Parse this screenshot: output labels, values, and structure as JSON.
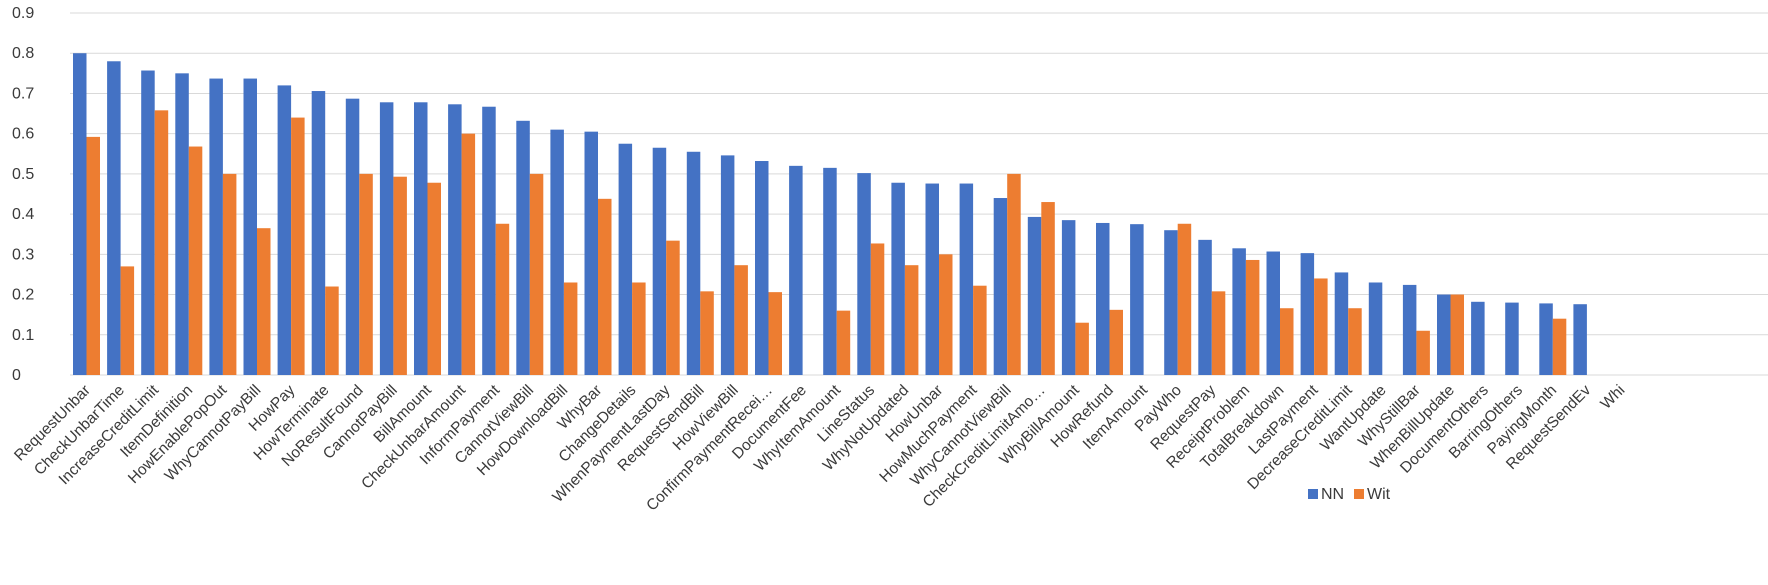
{
  "chart_data": {
    "type": "bar",
    "title": "",
    "xlabel": "",
    "ylabel": "",
    "ylim": [
      0,
      0.9
    ],
    "yticks": [
      "0",
      "0.1",
      "0.2",
      "0.3",
      "0.4",
      "0.5",
      "0.6",
      "0.7",
      "0.8",
      "0.9"
    ],
    "grid": true,
    "legend_position": "bottom-right",
    "categories": [
      "RequestUnbar",
      "CheckUnbarTime",
      "IncreaseCreditLimit",
      "ItemDefinition",
      "HowEnablePopOut",
      "WhyCannotPayBill",
      "HowPay",
      "HowTerminate",
      "NoResultFound",
      "CannotPayBill",
      "BillAmount",
      "CheckUnbarAmount",
      "InformPayment",
      "CannotViewBill",
      "HowDownloadBill",
      "WhyBar",
      "ChangeDetails",
      "WhenPaymentLastDay",
      "RequestSendBill",
      "HowViewBill",
      "ConfirmPaymentRecei…",
      "DocumentFee",
      "WhyItemAmount",
      "LineStatus",
      "WhyNotUpdated",
      "HowUnbar",
      "HowMuchPayment",
      "WhyCannotViewBill",
      "CheckCreditLimitAmo…",
      "WhyBillAmount",
      "HowRefund",
      "ItemAmount",
      "PayWho",
      "RequestPay",
      "ReceiptProblem",
      "TotalBreakdown",
      "LastPayment",
      "DecreaseCreditLimit",
      "WantUpdate",
      "WhyStillBar",
      "WhenBillUpdate",
      "DocumentOthers",
      "BarringOthers",
      "PayingMonth",
      "RequestSendEv",
      "Whi"
    ],
    "series": [
      {
        "name": "NN",
        "color": "#4472C4",
        "values": [
          0.8,
          0.78,
          0.757,
          0.75,
          0.737,
          0.737,
          0.72,
          0.706,
          0.687,
          0.678,
          0.678,
          0.673,
          0.667,
          0.632,
          0.61,
          0.605,
          0.575,
          0.565,
          0.555,
          0.546,
          0.532,
          0.52,
          0.515,
          0.502,
          0.478,
          0.476,
          0.476,
          0.44,
          0.393,
          0.385,
          0.378,
          0.375,
          0.36,
          0.336,
          0.315,
          0.307,
          0.303,
          0.255,
          0.23,
          0.224,
          0.2,
          0.182,
          0.18,
          0.178,
          0.176,
          0.0
        ]
      },
      {
        "name": "Wit",
        "color": "#ED7D31",
        "values": [
          0.592,
          0.27,
          0.658,
          0.568,
          0.5,
          0.365,
          0.64,
          0.22,
          0.5,
          0.493,
          0.478,
          0.6,
          0.376,
          0.5,
          0.23,
          0.438,
          0.23,
          0.334,
          0.208,
          0.273,
          0.206,
          0.0,
          0.16,
          0.327,
          0.273,
          0.3,
          0.222,
          0.5,
          0.43,
          0.13,
          0.162,
          0.0,
          0.376,
          0.208,
          0.286,
          0.166,
          0.24,
          0.166,
          0.0,
          0.11,
          0.2,
          0.0,
          0.0,
          0.14,
          0.0,
          0.0
        ]
      }
    ]
  }
}
